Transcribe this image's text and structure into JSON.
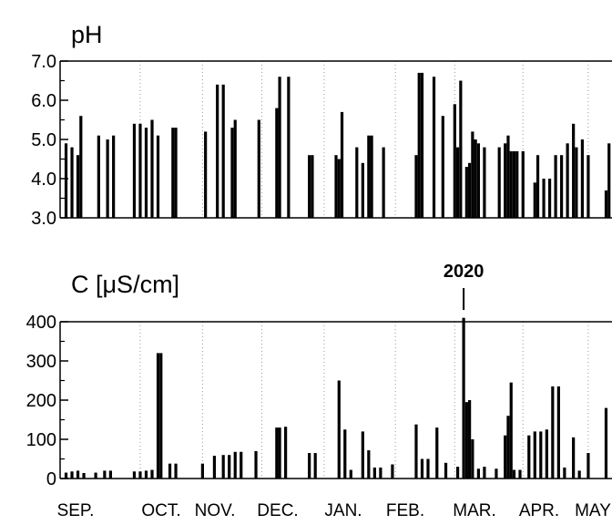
{
  "chart_data": [
    {
      "type": "bar",
      "title": "pH",
      "ylim": [
        3.0,
        7.0
      ],
      "y_ticks": [
        "7.0",
        "6.0",
        "5.0",
        "4.0",
        "3.0"
      ],
      "x_categories": [
        "SEP.",
        "OCT.",
        "NOV.",
        "DEC.",
        "JAN.",
        "FEB.",
        "MAR.",
        "APR.",
        "MAY"
      ],
      "grid": "vertical-dotted",
      "series": [
        {
          "values": [
            {
              "x": 2,
              "y": 4.9
            },
            {
              "x": 4,
              "y": 4.8
            },
            {
              "x": 6,
              "y": 4.6
            },
            {
              "x": 7,
              "y": 5.6
            },
            {
              "x": 13,
              "y": 5.1
            },
            {
              "x": 16,
              "y": 5.0
            },
            {
              "x": 18,
              "y": 5.1
            },
            {
              "x": 25,
              "y": 5.4
            },
            {
              "x": 27,
              "y": 5.4
            },
            {
              "x": 29,
              "y": 5.3
            },
            {
              "x": 31,
              "y": 5.5
            },
            {
              "x": 33,
              "y": 5.1
            },
            {
              "x": 38,
              "y": 5.3
            },
            {
              "x": 39,
              "y": 5.3
            },
            {
              "x": 49,
              "y": 5.2
            },
            {
              "x": 53,
              "y": 6.4
            },
            {
              "x": 55,
              "y": 6.4
            },
            {
              "x": 58,
              "y": 5.3
            },
            {
              "x": 59,
              "y": 5.5
            },
            {
              "x": 67,
              "y": 5.5
            },
            {
              "x": 73,
              "y": 5.8
            },
            {
              "x": 74,
              "y": 6.6
            },
            {
              "x": 77,
              "y": 6.6
            },
            {
              "x": 84,
              "y": 4.6
            },
            {
              "x": 85,
              "y": 4.6
            },
            {
              "x": 93,
              "y": 4.6
            },
            {
              "x": 94,
              "y": 4.5
            },
            {
              "x": 95,
              "y": 5.7
            },
            {
              "x": 100,
              "y": 4.8
            },
            {
              "x": 102,
              "y": 4.4
            },
            {
              "x": 104,
              "y": 5.1
            },
            {
              "x": 105,
              "y": 5.1
            },
            {
              "x": 109,
              "y": 4.8
            },
            {
              "x": 120,
              "y": 4.6
            },
            {
              "x": 121,
              "y": 6.7
            },
            {
              "x": 122,
              "y": 6.7
            },
            {
              "x": 126,
              "y": 6.6
            },
            {
              "x": 129,
              "y": 5.6
            },
            {
              "x": 133,
              "y": 5.9
            },
            {
              "x": 134,
              "y": 4.8
            },
            {
              "x": 135,
              "y": 6.5
            },
            {
              "x": 137,
              "y": 4.3
            },
            {
              "x": 138,
              "y": 4.4
            },
            {
              "x": 139,
              "y": 5.2
            },
            {
              "x": 140,
              "y": 5.0
            },
            {
              "x": 141,
              "y": 4.9
            },
            {
              "x": 143,
              "y": 4.8
            },
            {
              "x": 148,
              "y": 4.8
            },
            {
              "x": 150,
              "y": 4.9
            },
            {
              "x": 151,
              "y": 5.1
            },
            {
              "x": 152,
              "y": 4.7
            },
            {
              "x": 153,
              "y": 4.7
            },
            {
              "x": 154,
              "y": 4.7
            },
            {
              "x": 156,
              "y": 4.7
            },
            {
              "x": 160,
              "y": 3.9
            },
            {
              "x": 161,
              "y": 4.6
            },
            {
              "x": 163,
              "y": 4.0
            },
            {
              "x": 165,
              "y": 4.0
            },
            {
              "x": 167,
              "y": 4.6
            },
            {
              "x": 169,
              "y": 4.6
            },
            {
              "x": 171,
              "y": 4.9
            },
            {
              "x": 173,
              "y": 5.4
            },
            {
              "x": 174,
              "y": 4.8
            },
            {
              "x": 176,
              "y": 5.0
            },
            {
              "x": 178,
              "y": 4.6
            },
            {
              "x": 184,
              "y": 3.7
            },
            {
              "x": 185,
              "y": 4.9
            }
          ]
        }
      ]
    },
    {
      "type": "bar",
      "title": "C [μS/cm]",
      "ylim": [
        0,
        400
      ],
      "y_ticks": [
        "400",
        "300",
        "200",
        "100",
        "0"
      ],
      "x_categories": [
        "SEP.",
        "OCT.",
        "NOV.",
        "DEC.",
        "JAN.",
        "FEB.",
        "MAR.",
        "APR.",
        "MAY"
      ],
      "grid": "vertical-dotted",
      "annotations": [
        {
          "label": "2020",
          "x": 136
        }
      ],
      "series": [
        {
          "values": [
            {
              "x": 2,
              "y": 15
            },
            {
              "x": 4,
              "y": 18
            },
            {
              "x": 6,
              "y": 20
            },
            {
              "x": 8,
              "y": 14
            },
            {
              "x": 12,
              "y": 15
            },
            {
              "x": 15,
              "y": 20
            },
            {
              "x": 17,
              "y": 20
            },
            {
              "x": 25,
              "y": 18
            },
            {
              "x": 27,
              "y": 18
            },
            {
              "x": 29,
              "y": 20
            },
            {
              "x": 31,
              "y": 22
            },
            {
              "x": 33,
              "y": 320
            },
            {
              "x": 34,
              "y": 320
            },
            {
              "x": 37,
              "y": 38
            },
            {
              "x": 39,
              "y": 38
            },
            {
              "x": 48,
              "y": 38
            },
            {
              "x": 52,
              "y": 58
            },
            {
              "x": 55,
              "y": 60
            },
            {
              "x": 57,
              "y": 60
            },
            {
              "x": 59,
              "y": 68
            },
            {
              "x": 61,
              "y": 68
            },
            {
              "x": 66,
              "y": 70
            },
            {
              "x": 73,
              "y": 130
            },
            {
              "x": 74,
              "y": 130
            },
            {
              "x": 76,
              "y": 132
            },
            {
              "x": 84,
              "y": 65
            },
            {
              "x": 86,
              "y": 65
            },
            {
              "x": 94,
              "y": 250
            },
            {
              "x": 96,
              "y": 125
            },
            {
              "x": 98,
              "y": 22
            },
            {
              "x": 102,
              "y": 120
            },
            {
              "x": 104,
              "y": 72
            },
            {
              "x": 106,
              "y": 28
            },
            {
              "x": 108,
              "y": 28
            },
            {
              "x": 112,
              "y": 36
            },
            {
              "x": 120,
              "y": 138
            },
            {
              "x": 122,
              "y": 50
            },
            {
              "x": 124,
              "y": 50
            },
            {
              "x": 127,
              "y": 130
            },
            {
              "x": 130,
              "y": 40
            },
            {
              "x": 134,
              "y": 30
            },
            {
              "x": 136,
              "y": 410
            },
            {
              "x": 137,
              "y": 195
            },
            {
              "x": 138,
              "y": 200
            },
            {
              "x": 139,
              "y": 100
            },
            {
              "x": 141,
              "y": 25
            },
            {
              "x": 143,
              "y": 30
            },
            {
              "x": 147,
              "y": 25
            },
            {
              "x": 150,
              "y": 110
            },
            {
              "x": 151,
              "y": 160
            },
            {
              "x": 152,
              "y": 245
            },
            {
              "x": 153,
              "y": 22
            },
            {
              "x": 155,
              "y": 22
            },
            {
              "x": 158,
              "y": 110
            },
            {
              "x": 160,
              "y": 120
            },
            {
              "x": 162,
              "y": 120
            },
            {
              "x": 164,
              "y": 125
            },
            {
              "x": 166,
              "y": 235
            },
            {
              "x": 168,
              "y": 235
            },
            {
              "x": 170,
              "y": 28
            },
            {
              "x": 173,
              "y": 105
            },
            {
              "x": 175,
              "y": 20
            },
            {
              "x": 178,
              "y": 65
            },
            {
              "x": 184,
              "y": 180
            }
          ]
        }
      ]
    }
  ]
}
